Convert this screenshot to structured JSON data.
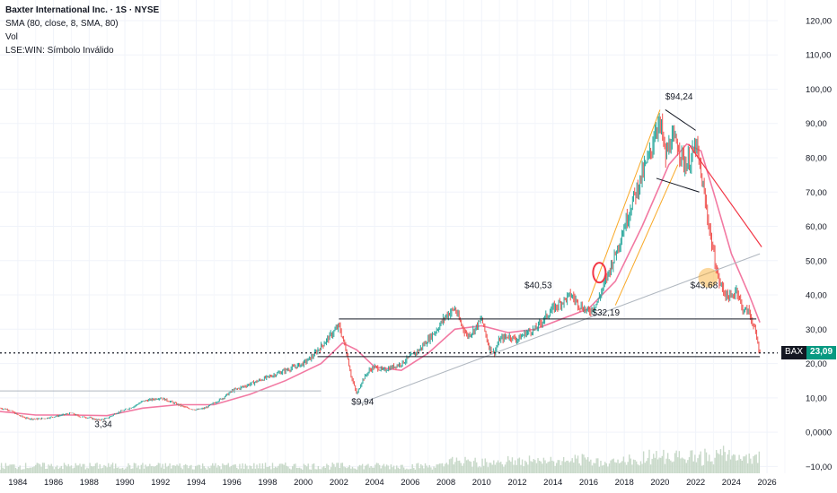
{
  "legend": {
    "title": "Baxter International Inc. · 1S · NYSE",
    "indicator": "SMA (80, close, 8, SMA, 80)",
    "volume": "Vol",
    "symbol_note": "LSE:WIN: Símbolo Inválido"
  },
  "price_tag": {
    "symbol": "BAX",
    "value": "23,09"
  },
  "colors": {
    "up": "#26a69a",
    "down": "#ef5350",
    "sma": "#f06292",
    "annotation_red": "#f23645",
    "annotation_orange": "#f9a825",
    "annotation_gray": "#b0b7bf",
    "dark": "#131722",
    "volume": "#c8d9c9"
  },
  "chart_data": {
    "type": "line",
    "title": "Baxter International Inc. · 1S · NYSE",
    "xlabel": "",
    "ylabel": "",
    "xlim": [
      1983,
      2026.6
    ],
    "ylim": [
      -12,
      126
    ],
    "x_ticks": [
      "1984",
      "1986",
      "1988",
      "1990",
      "1992",
      "1994",
      "1996",
      "1998",
      "2000",
      "2002",
      "2004",
      "2006",
      "2008",
      "2010",
      "2012",
      "2014",
      "2016",
      "2018",
      "2020",
      "2022",
      "2024",
      "2026"
    ],
    "y_ticks": [
      "120,00",
      "110,00",
      "100,00",
      "90,00",
      "80,00",
      "70,00",
      "60,00",
      "50,00",
      "40,00",
      "30,00",
      "20,00",
      "10,00",
      "0,0000",
      "−10,00"
    ],
    "series": [
      {
        "name": "BAX",
        "x": [
          1983.0,
          1983.5,
          1984.0,
          1984.5,
          1985.0,
          1985.5,
          1986.0,
          1986.5,
          1987.0,
          1987.5,
          1988.0,
          1988.5,
          1989.0,
          1989.5,
          1990.0,
          1990.5,
          1991.0,
          1991.5,
          1992.0,
          1992.5,
          1993.0,
          1993.5,
          1994.0,
          1994.5,
          1995.0,
          1995.5,
          1996.0,
          1996.5,
          1997.0,
          1997.5,
          1998.0,
          1998.5,
          1999.0,
          1999.5,
          2000.0,
          2000.5,
          2001.0,
          2001.5,
          2002.0,
          2002.4,
          2002.7,
          2003.0,
          2003.3,
          2003.7,
          2004.0,
          2004.5,
          2005.0,
          2005.5,
          2006.0,
          2006.5,
          2007.0,
          2007.5,
          2008.0,
          2008.5,
          2008.8,
          2009.2,
          2009.6,
          2010.0,
          2010.4,
          2010.7,
          2011.0,
          2011.5,
          2012.0,
          2012.5,
          2013.0,
          2013.5,
          2014.0,
          2014.5,
          2015.0,
          2015.5,
          2016.0,
          2016.5,
          2017.0,
          2017.5,
          2018.0,
          2018.5,
          2019.0,
          2019.5,
          2019.8,
          2020.1,
          2020.3,
          2020.6,
          2021.0,
          2021.4,
          2021.8,
          2022.0,
          2022.3,
          2022.6,
          2023.0,
          2023.3,
          2023.7,
          2024.0,
          2024.3,
          2024.6,
          2025.0,
          2025.3,
          2025.6
        ],
        "values": [
          7,
          6.5,
          5,
          4,
          3.8,
          4,
          4.5,
          5,
          5.5,
          4.5,
          4.2,
          3.5,
          4,
          5.5,
          6.5,
          7.5,
          9,
          9.5,
          10,
          9,
          8,
          7,
          6.5,
          7,
          8.5,
          10,
          12,
          13,
          14,
          15,
          16,
          17,
          18,
          19,
          20,
          22,
          25,
          28,
          31,
          24,
          16,
          11,
          15,
          18,
          19,
          18,
          19,
          20,
          22,
          24,
          27,
          30,
          34,
          36,
          32,
          28,
          30,
          33,
          25,
          23,
          27,
          28,
          27,
          29,
          30,
          33,
          36,
          38,
          40,
          37,
          35,
          38,
          45,
          52,
          60,
          68,
          75,
          82,
          90,
          88,
          80,
          85,
          84,
          78,
          80,
          84,
          75,
          65,
          52,
          44,
          40,
          39,
          42,
          36,
          35,
          30,
          23
        ]
      },
      {
        "name": "SMA (80, close, 8, SMA, 80)",
        "x": [
          1983.0,
          1985.0,
          1987.0,
          1989.0,
          1991.0,
          1993.0,
          1995.0,
          1997.0,
          1999.0,
          2001.0,
          2002.2,
          2003.0,
          2004.0,
          2005.5,
          2007.0,
          2008.5,
          2010.0,
          2011.5,
          2013.0,
          2014.5,
          2016.0,
          2017.5,
          2019.0,
          2020.5,
          2021.5,
          2022.3,
          2023.0,
          2024.0,
          2025.0,
          2025.6
        ],
        "values": [
          6,
          5,
          5,
          4.8,
          7,
          8,
          8,
          11,
          15,
          20,
          26,
          24,
          19,
          18,
          23,
          30,
          31,
          29,
          30,
          33,
          36,
          44,
          60,
          78,
          84,
          82,
          70,
          52,
          40,
          32
        ]
      }
    ],
    "annotations": [
      "$94,24",
      "$40,53",
      "$32,19",
      "$43,68",
      "$9,94",
      "3,34"
    ],
    "grid": true,
    "legend": "top-left"
  }
}
